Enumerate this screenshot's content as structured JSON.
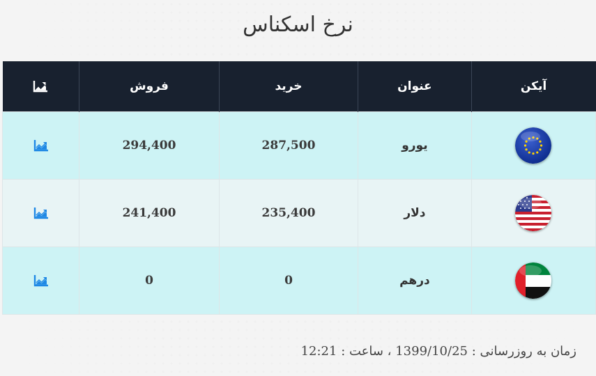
{
  "page": {
    "title": "نرخ اسکناس"
  },
  "table": {
    "headers": {
      "icon": "آیکن",
      "title": "عنوان",
      "buy": "خرید",
      "sell": "فروش",
      "chart_icon": "chart-icon"
    },
    "rows": [
      {
        "icon": "eu-flag-icon",
        "title": "یورو",
        "buy": "287,500",
        "sell": "294,400",
        "chart_icon": "chart-icon"
      },
      {
        "icon": "us-flag-icon",
        "title": "دلار",
        "buy": "235,400",
        "sell": "241,400",
        "chart_icon": "chart-icon"
      },
      {
        "icon": "uae-flag-icon",
        "title": "درهم",
        "buy": "0",
        "sell": "0",
        "chart_icon": "chart-icon"
      }
    ]
  },
  "footer": {
    "label": "زمان به روزرسانی :",
    "date": "1399/10/25",
    "time_label": "، ساعت :",
    "time": "12:21"
  },
  "colors": {
    "header_bg": "#18212f",
    "row_odd": "#cdf3f5",
    "row_even": "#e8f4f5",
    "chart_icon": "#1e88e5"
  }
}
